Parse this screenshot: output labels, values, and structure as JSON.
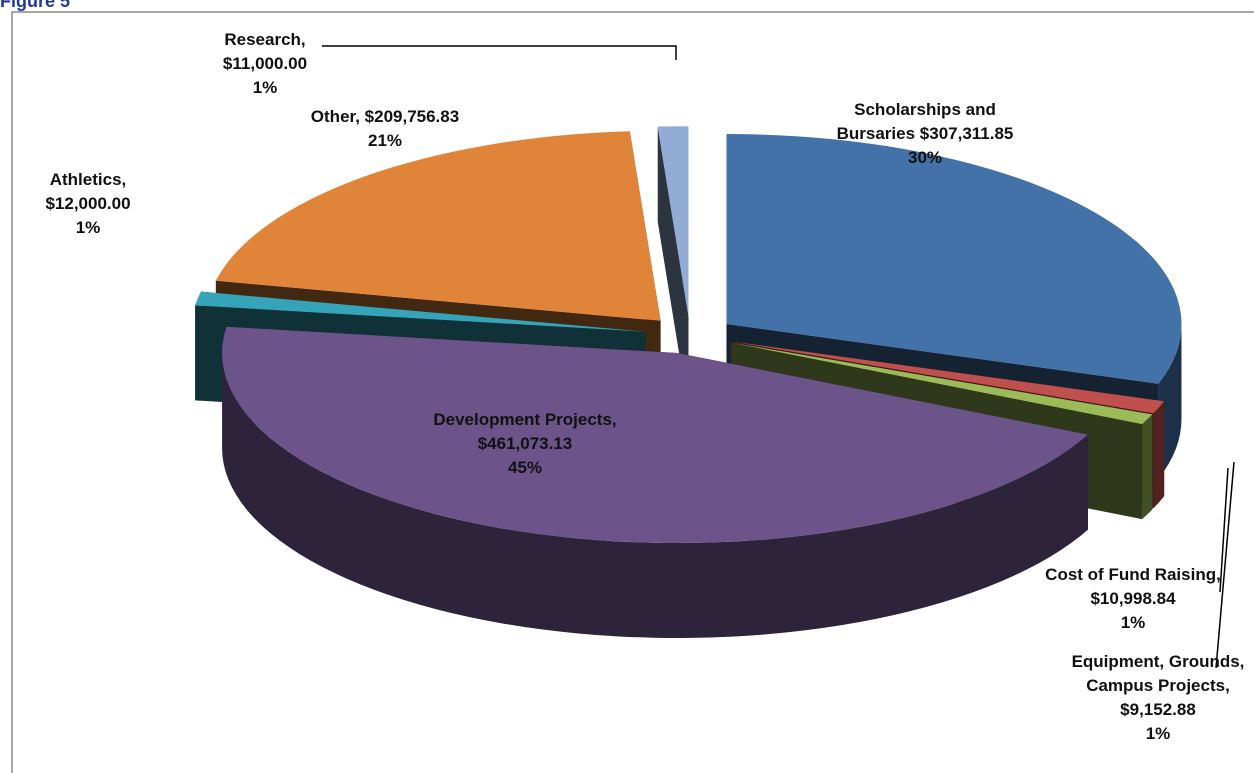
{
  "chart_data": {
    "type": "pie3d",
    "title": "Figure 5",
    "categories": [
      "Scholarships and Bursaries",
      "Cost of Fund Raising,",
      "Equipment, Grounds, Campus Projects,",
      "Development Projects,",
      "Athletics,",
      "Other,",
      "Research,"
    ],
    "values": [
      307311.85,
      10998.84,
      9152.88,
      461073.13,
      12000.0,
      209756.83,
      11000.0
    ],
    "value_labels": [
      "$307,311.85",
      "$10,998.84",
      "$9,152.88",
      "$461,073.13",
      "$12,000.00",
      "$209,756.83",
      "$11,000.00"
    ],
    "percent_labels": [
      "30%",
      "1%",
      "1%",
      "45%",
      "1%",
      "21%",
      "1%"
    ],
    "colors": [
      "#4372a8",
      "#c0504d",
      "#9bbb59",
      "#6c538a",
      "#35a3b8",
      "#e0843a",
      "#93acd6"
    ]
  }
}
